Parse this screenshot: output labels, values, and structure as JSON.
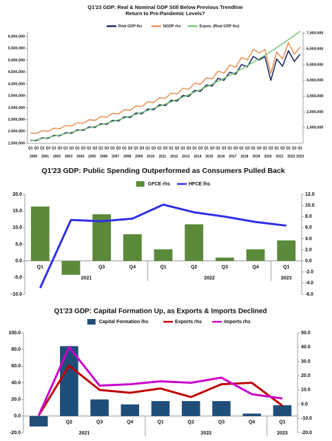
{
  "chart_data": [
    {
      "type": "line",
      "title": "Q1'23 GDP: Real & Nominal GDP  Still Below Previous Trendline",
      "subtitle": "Return to Pre-Pandemic Levels?",
      "categories": [
        "Q1",
        "Q3",
        "Q1",
        "Q3",
        "Q1",
        "Q3",
        "Q1",
        "Q3",
        "Q1",
        "Q3",
        "Q1",
        "Q3",
        "Q1",
        "Q3",
        "Q1",
        "Q3",
        "Q1",
        "Q3",
        "Q1",
        "Q3",
        "Q1",
        "Q3",
        "Q1",
        "Q3",
        "Q1",
        "Q3",
        "Q1",
        "Q3",
        "Q1",
        "Q3",
        "Q1",
        "Q3",
        "Q1",
        "Q3",
        "Q1",
        "Q3",
        "Q1",
        "Q3",
        "Q1",
        "Q3",
        "Q1",
        "Q3",
        "Q1",
        "Q3",
        "Q1",
        "Q3",
        "Q1"
      ],
      "years": [
        "2000",
        null,
        "2001",
        null,
        "2002",
        null,
        "2003",
        null,
        "2004",
        null,
        "2005",
        null,
        "2006",
        null,
        "2007",
        null,
        "2008",
        null,
        "2009",
        null,
        "2010",
        null,
        "2011",
        null,
        "2012",
        null,
        "2013",
        null,
        "2014",
        null,
        "2015",
        null,
        "2016",
        null,
        "2017",
        null,
        "2018",
        null,
        "2019",
        null,
        "2020",
        null,
        "2021",
        null,
        "2022",
        null,
        "2023"
      ],
      "series": [
        {
          "name": "Real GDP lhs",
          "color": "#1c2a5e",
          "values": [
            1630000,
            1615000,
            1731000,
            1713000,
            1836000,
            1817000,
            1948000,
            1928000,
            2067000,
            2045000,
            2192000,
            2169000,
            2326000,
            2301000,
            2466000,
            2441000,
            2616000,
            2589000,
            2775000,
            2747000,
            2945000,
            2914000,
            3123000,
            3091000,
            3314000,
            3279000,
            3515000,
            3478000,
            3729000,
            3690000,
            3956000,
            3914000,
            4237000,
            4152000,
            4495000,
            4405000,
            4815000,
            4720000,
            5157000,
            5007000,
            5150000,
            4150000,
            5050000,
            4750000,
            5400000,
            4950000,
            5250000
          ]
        },
        {
          "name": "NGDP rhs",
          "color": "#e8955a",
          "axis": "y2",
          "values": [
            650000,
            630000,
            800000,
            770000,
            960000,
            930000,
            1130000,
            1100000,
            1310000,
            1280000,
            1500000,
            1460000,
            1700000,
            1660000,
            1910000,
            1870000,
            2140000,
            2100000,
            2380000,
            2340000,
            2640000,
            2590000,
            2900000,
            2860000,
            3190000,
            3140000,
            3500000,
            3440000,
            3820000,
            3760000,
            4160000,
            4100000,
            4590000,
            4460000,
            4980000,
            4840000,
            5460000,
            5320000,
            5980000,
            5750000,
            5960000,
            4450000,
            5810000,
            5360000,
            6400000,
            5660000,
            6120000
          ]
        },
        {
          "name": "Expon. (Real GDP lhs)",
          "color": "#7cc47c",
          "values": [
            1600000,
            1648000,
            1697000,
            1748000,
            1800000,
            1854000,
            1910000,
            1967000,
            2026000,
            2087000,
            2149000,
            2213000,
            2280000,
            2348000,
            2418000,
            2491000,
            2565000,
            2642000,
            2721000,
            2803000,
            2887000,
            2973000,
            3062000,
            3154000,
            3249000,
            3346000,
            3446000,
            3549000,
            3656000,
            3765000,
            3878000,
            3994000,
            4114000,
            4237000,
            4364000,
            4495000,
            4630000,
            4768000,
            4911000,
            5058000,
            5210000,
            5366000,
            5527000,
            5692000,
            5863000,
            6038000,
            6219000
          ]
        }
      ],
      "ylim": [
        1500000,
        6200000
      ],
      "yticks": [
        {
          "value": 1500000,
          "label": "1,500,000"
        },
        {
          "value": 2000000,
          "label": "2,000,000"
        },
        {
          "value": 2500000,
          "label": "2,500,000"
        },
        {
          "value": 3000000,
          "label": "3,000,000"
        },
        {
          "value": 3500000,
          "label": "3,500,000"
        },
        {
          "value": 4000000,
          "label": "4,000,000"
        },
        {
          "value": 4500000,
          "label": "4,500,000"
        },
        {
          "value": 5000000,
          "label": "5,000,000"
        },
        {
          "value": 5500000,
          "label": "5,500,000"
        },
        {
          "value": 6000000,
          "label": "6,000,000"
        }
      ],
      "y2lim": [
        0,
        7100000
      ],
      "y2ticks": [
        {
          "value": 1000000,
          "label": "1,000,000"
        },
        {
          "value": 2000000,
          "label": "2,000,000"
        },
        {
          "value": 3000000,
          "label": "3,000,000"
        },
        {
          "value": 4000000,
          "label": "4,000,000"
        },
        {
          "value": 5000000,
          "label": "5,000,000"
        },
        {
          "value": 6000000,
          "label": "6,000,000"
        },
        {
          "value": 7000000,
          "label": "7,000,000"
        }
      ]
    },
    {
      "type": "combo",
      "title": "Q1'23 GDP: Public Spending Outperformed as Consumers Pulled Back",
      "categories": [
        "Q1",
        "Q2",
        "Q3",
        "Q4",
        "Q1",
        "Q2",
        "Q3",
        "Q4",
        "Q1"
      ],
      "years": [
        "2021",
        null,
        null,
        null,
        "2022",
        null,
        null,
        null,
        "2023"
      ],
      "series": [
        {
          "name": "GFCE rhs",
          "type": "bar",
          "axis": "y2",
          "color": "#5b8a3a",
          "values": [
            9.8,
            -2.5,
            8.4,
            4.8,
            2.1,
            6.6,
            0.6,
            2.1,
            3.7
          ]
        },
        {
          "name": "HFCE lhs",
          "type": "line",
          "color": "#2f2fe6",
          "values": [
            -8.1,
            12.3,
            11.9,
            12.7,
            16.9,
            14.6,
            13.3,
            11.7,
            10.6
          ]
        }
      ],
      "ylim": [
        -10,
        20
      ],
      "yticks": [
        {
          "value": -10,
          "label": "-10.0"
        },
        {
          "value": -5,
          "label": "-5.0"
        },
        {
          "value": 0,
          "label": "0.0"
        },
        {
          "value": 5,
          "label": "5.0"
        },
        {
          "value": 10,
          "label": "10.0"
        },
        {
          "value": 15,
          "label": "15.0"
        },
        {
          "value": 20,
          "label": "20.0"
        }
      ],
      "y2lim": [
        -6,
        12
      ],
      "y2ticks": [
        {
          "value": -6,
          "label": "-6.0"
        },
        {
          "value": -4,
          "label": "-4.0"
        },
        {
          "value": -2,
          "label": "-2.0"
        },
        {
          "value": 0,
          "label": "0.0"
        },
        {
          "value": 2,
          "label": "2.0"
        },
        {
          "value": 4,
          "label": "4.0"
        },
        {
          "value": 6,
          "label": "6.0"
        },
        {
          "value": 8,
          "label": "8.0"
        },
        {
          "value": 10,
          "label": "10.0"
        },
        {
          "value": 12,
          "label": "12.0"
        }
      ]
    },
    {
      "type": "combo",
      "title": "Q1'23 GDP: Capital Formation Up, as Exports & Imports Declined",
      "categories": [
        "Q1",
        "Q2",
        "Q3",
        "Q4",
        "Q1",
        "Q2",
        "Q3",
        "Q4",
        "Q1"
      ],
      "years": [
        "2021",
        null,
        null,
        null,
        "2022",
        null,
        null,
        null,
        "2023"
      ],
      "series": [
        {
          "name": "Capital Formation lhs",
          "type": "bar",
          "color": "#1f4e79",
          "values": [
            -12.5,
            84,
            20,
            14,
            18,
            18,
            18,
            3,
            13
          ]
        },
        {
          "name": "Exports rhs",
          "type": "line",
          "axis": "y2",
          "color": "#c00000",
          "values": [
            -8,
            27,
            10,
            8,
            11,
            5,
            14,
            15,
            -1
          ]
        },
        {
          "name": "Imports rhs",
          "type": "line",
          "axis": "y2",
          "color": "#cc00cc",
          "values": [
            -8,
            40,
            13,
            14,
            16,
            15,
            18.6,
            7,
            4
          ]
        }
      ],
      "ylim": [
        -20,
        100
      ],
      "yticks": [
        {
          "value": -20,
          "label": "-20.0"
        },
        {
          "value": 0,
          "label": "0.0"
        },
        {
          "value": 20,
          "label": "20.0"
        },
        {
          "value": 40,
          "label": "40.0"
        },
        {
          "value": 60,
          "label": "60.0"
        },
        {
          "value": 80,
          "label": "80.0"
        },
        {
          "value": 100,
          "label": "100.0"
        }
      ],
      "y2lim": [
        -20,
        50
      ],
      "y2ticks": [
        {
          "value": -20,
          "label": "-20.0"
        },
        {
          "value": -10,
          "label": "-10.0"
        },
        {
          "value": 0,
          "label": "0.0"
        },
        {
          "value": 10,
          "label": "10.0"
        },
        {
          "value": 20,
          "label": "20.0"
        },
        {
          "value": 30,
          "label": "30.0"
        },
        {
          "value": 40,
          "label": "40.0"
        },
        {
          "value": 50,
          "label": "50.0"
        }
      ]
    }
  ]
}
